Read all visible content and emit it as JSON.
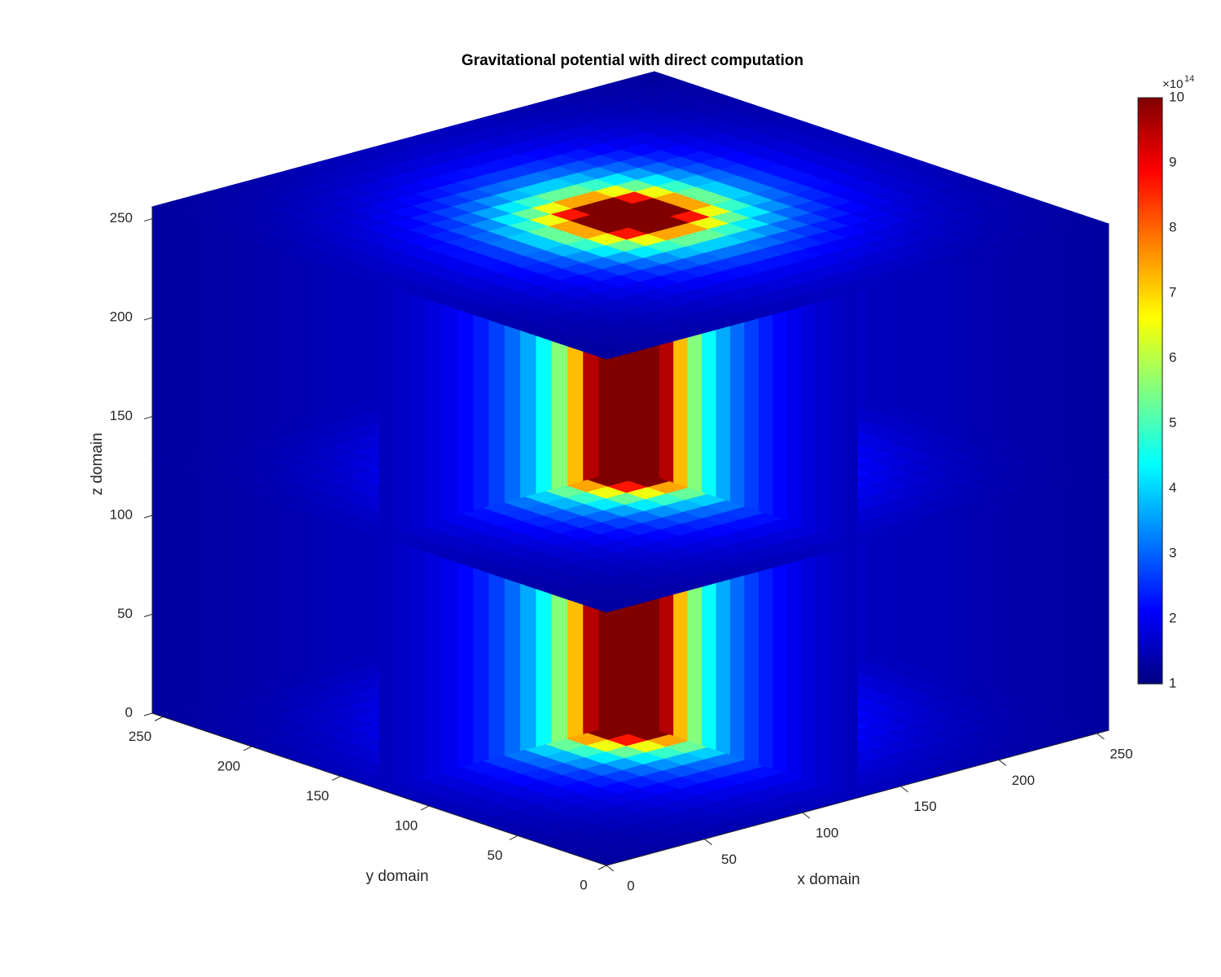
{
  "chart_data": {
    "type": "slice3d",
    "title": "Gravitational potential with direct computation",
    "xlabel": "x domain",
    "ylabel": "y domain",
    "zlabel": "z domain",
    "xlim": [
      0,
      256
    ],
    "ylim": [
      0,
      256
    ],
    "zlim": [
      0,
      256
    ],
    "xticks": [
      0,
      50,
      100,
      150,
      200,
      250
    ],
    "yticks": [
      0,
      50,
      100,
      150,
      200,
      250
    ],
    "zticks": [
      0,
      50,
      100,
      150,
      200,
      250
    ],
    "slices": {
      "x": [
        128,
        256
      ],
      "y": [
        128,
        256
      ],
      "z": [
        0,
        128,
        256
      ]
    },
    "colormap": "jet",
    "clim": [
      1,
      10
    ],
    "cticks": [
      1,
      2,
      3,
      4,
      5,
      6,
      7,
      8,
      9,
      10
    ],
    "colorbar_base": "×10",
    "colorbar_exponent": "14"
  }
}
